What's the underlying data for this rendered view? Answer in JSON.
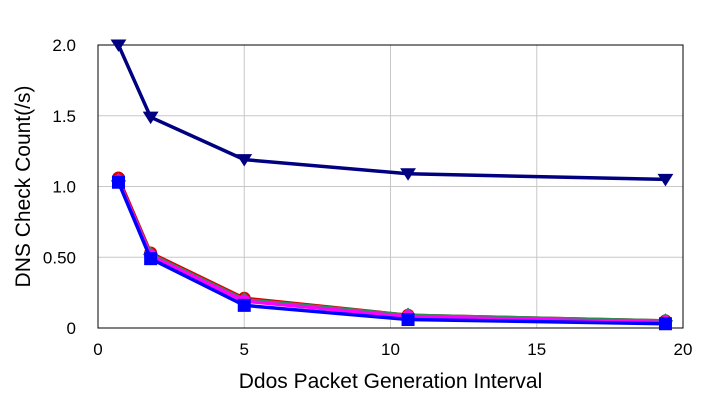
{
  "chart_data": {
    "type": "line",
    "title": "",
    "xlabel": "Ddos Packet Generation Interval",
    "ylabel": "DNS Check Count(/s)",
    "xlim": [
      0,
      20
    ],
    "ylim": [
      0,
      2.0
    ],
    "x_ticks": [
      {
        "value": 0,
        "label": "0"
      },
      {
        "value": 5,
        "label": "5"
      },
      {
        "value": 10,
        "label": "10"
      },
      {
        "value": 15,
        "label": "15"
      },
      {
        "value": 20,
        "label": "20"
      }
    ],
    "y_ticks": [
      {
        "value": 0,
        "label": "0"
      },
      {
        "value": 0.5,
        "label": "0.50"
      },
      {
        "value": 1.0,
        "label": "1.0"
      },
      {
        "value": 1.5,
        "label": "1.5"
      },
      {
        "value": 2.0,
        "label": "2.0"
      }
    ],
    "grid": true,
    "legend": "none",
    "series": [
      {
        "color": "#000080",
        "marker": "triangle-down",
        "x": [
          0.7,
          1.8,
          5.0,
          10.6,
          19.4
        ],
        "values": [
          2.0,
          1.49,
          1.19,
          1.09,
          1.05
        ]
      },
      {
        "color": "#e00000",
        "marker": "circle",
        "x": [
          0.7,
          1.8,
          5.0,
          10.6,
          19.4
        ],
        "values": [
          1.06,
          0.53,
          0.21,
          0.09,
          0.05
        ]
      },
      {
        "color": "#2e8b57",
        "marker": "diamond",
        "x": [
          0.7,
          1.8,
          5.0,
          10.6,
          19.4
        ],
        "values": [
          1.04,
          0.52,
          0.2,
          0.09,
          0.05
        ]
      },
      {
        "color": "#ff00ff",
        "marker": "circle",
        "x": [
          0.7,
          1.8,
          5.0,
          10.6,
          19.4
        ],
        "values": [
          1.04,
          0.51,
          0.19,
          0.08,
          0.04
        ]
      },
      {
        "color": "#0000ff",
        "marker": "square",
        "x": [
          0.7,
          1.8,
          5.0,
          10.6,
          19.4
        ],
        "values": [
          1.03,
          0.49,
          0.16,
          0.06,
          0.03
        ]
      }
    ]
  }
}
